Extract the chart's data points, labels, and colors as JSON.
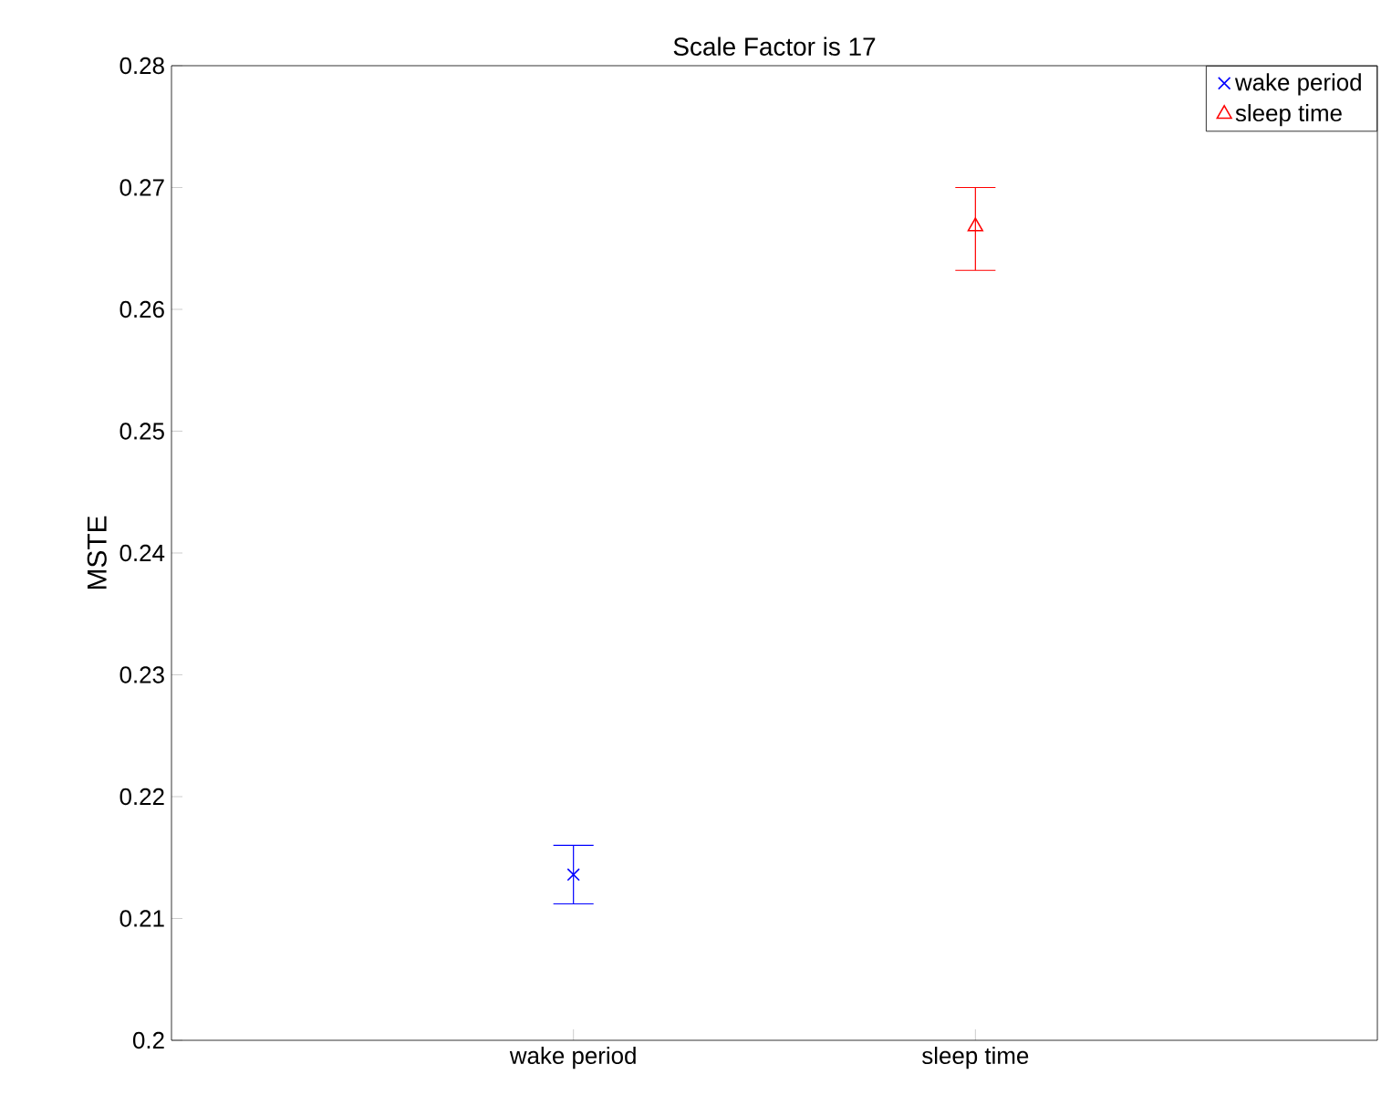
{
  "chart_data": {
    "type": "scatter",
    "title": "Scale Factor is 17",
    "ylabel": "MSTE",
    "categories": [
      "wake period",
      "sleep time"
    ],
    "series": [
      {
        "name": "wake period",
        "color": "#0000ff",
        "marker": "cross",
        "values": [
          0.2136,
          null
        ],
        "errors": [
          [
            0.2112,
            0.216
          ],
          null
        ]
      },
      {
        "name": "sleep time",
        "color": "#ff0000",
        "marker": "triangle",
        "values": [
          null,
          0.2668
        ],
        "errors": [
          null,
          [
            0.2632,
            0.27
          ]
        ]
      }
    ],
    "ylim": [
      0.2,
      0.28
    ],
    "yticks": [
      0.2,
      0.21,
      0.22,
      0.23,
      0.24,
      0.25,
      0.26,
      0.27,
      0.28
    ],
    "grid": false,
    "legend": "top right"
  }
}
